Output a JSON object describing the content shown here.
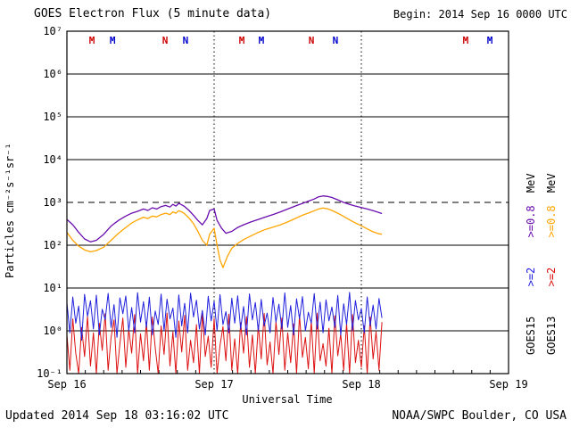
{
  "header": {
    "title": "GOES Electron Flux (5 minute data)",
    "begin_label": "Begin: 2014 Sep 16 0000 UTC"
  },
  "footer": {
    "updated": "Updated 2014 Sep 18 03:16:02 UTC",
    "source": "NOAA/SWPC Boulder, CO USA"
  },
  "legend": {
    "rows": [
      {
        "satellite": "GOES15",
        "ge2_label": ">=2",
        "ge2_color": "#2020dd",
        "ge08_label": ">=0.8",
        "ge08_color": "#6a0dad",
        "unit": "MeV"
      },
      {
        "satellite": "GOES13",
        "ge2_label": ">=2",
        "ge2_color": "#dd1111",
        "ge08_label": ">=0.8",
        "ge08_color": "#ffa500",
        "unit": "MeV"
      }
    ]
  },
  "chart_data": {
    "type": "line",
    "title": "GOES Electron Flux (5 minute data)",
    "xlabel": "Universal Time",
    "ylabel": "Particles cm⁻²s⁻¹sr⁻¹",
    "y_scale": "log",
    "ylim": [
      0.1,
      10000000
    ],
    "x_ticks": [
      {
        "label": "Sep 16",
        "day": 0
      },
      {
        "label": "Sep 17",
        "day": 1
      },
      {
        "label": "Sep 18",
        "day": 2
      },
      {
        "label": "Sep 19",
        "day": 3
      }
    ],
    "y_ticks": [
      {
        "label": "10⁷",
        "exp": 7
      },
      {
        "label": "10⁶",
        "exp": 6
      },
      {
        "label": "10⁵",
        "exp": 5
      },
      {
        "label": "10⁴",
        "exp": 4
      },
      {
        "label": "10³",
        "exp": 3
      },
      {
        "label": "10²",
        "exp": 2
      },
      {
        "label": "10¹",
        "exp": 1
      },
      {
        "label": "10⁰",
        "exp": 0
      },
      {
        "label": "10⁻¹",
        "exp": -1
      }
    ],
    "h_gridlines": [
      {
        "exp": 6,
        "style": "solid"
      },
      {
        "exp": 5,
        "style": "solid"
      },
      {
        "exp": 4,
        "style": "solid"
      },
      {
        "exp": 3,
        "style": "dashed"
      },
      {
        "exp": 2,
        "style": "solid"
      },
      {
        "exp": 1,
        "style": "solid"
      },
      {
        "exp": 0,
        "style": "solid"
      }
    ],
    "v_gridlines": [
      {
        "day": 1,
        "style": "dotted"
      },
      {
        "day": 2,
        "style": "dotted"
      }
    ],
    "event_markers": [
      {
        "label": "M",
        "color": "#cc0000",
        "day": 0.17
      },
      {
        "label": "M",
        "color": "#0000cc",
        "day": 0.31
      },
      {
        "label": "N",
        "color": "#cc0000",
        "day": 0.667
      },
      {
        "label": "N",
        "color": "#0000cc",
        "day": 0.806
      },
      {
        "label": "M",
        "color": "#cc0000",
        "day": 1.188
      },
      {
        "label": "M",
        "color": "#0000cc",
        "day": 1.321
      },
      {
        "label": "N",
        "color": "#cc0000",
        "day": 1.661
      },
      {
        "label": "N",
        "color": "#0000cc",
        "day": 1.824
      },
      {
        "label": "M",
        "color": "#cc0000",
        "day": 2.709
      },
      {
        "label": "M",
        "color": "#0000cc",
        "day": 2.873
      }
    ],
    "series": [
      {
        "name": "GOES13 >=2 MeV",
        "color": "#dd1111",
        "width": 1,
        "x0": 0,
        "dx": 0.02,
        "y": [
          0.8,
          0.12,
          1.9,
          0.3,
          0.1,
          1.2,
          0.25,
          2.2,
          0.15,
          0.9,
          0.1,
          1.5,
          0.35,
          2.5,
          0.12,
          0.7,
          1.8,
          0.1,
          0.5,
          2.0,
          0.14,
          1.1,
          0.3,
          2.4,
          0.1,
          0.85,
          0.2,
          1.6,
          0.12,
          2.1,
          0.4,
          0.1,
          1.3,
          0.28,
          2.6,
          0.15,
          0.95,
          0.1,
          1.7,
          0.32,
          2.3,
          0.12,
          0.6,
          0.18,
          1.4,
          0.1,
          2.7,
          0.25,
          0.75,
          0.14,
          1.95,
          0.1,
          0.45,
          1.25,
          0.2,
          2.45,
          0.12,
          0.65,
          0.1,
          1.55,
          0.3,
          2.15,
          0.14,
          0.8,
          0.1,
          1.35,
          0.22,
          2.55,
          0.16,
          0.55,
          0.1,
          1.65,
          0.28,
          2.0,
          0.12,
          0.9,
          0.18,
          1.45,
          0.1,
          2.35,
          0.24,
          0.7,
          0.13,
          1.75,
          0.1,
          2.6,
          0.2,
          0.5,
          0.15,
          1.15,
          0.1,
          2.25,
          0.26,
          0.85,
          0.12,
          1.5,
          0.1,
          2.4,
          0.18,
          0.6,
          0.14,
          1.3,
          0.1,
          2.1,
          0.22,
          0.95,
          0.12,
          1.6
        ]
      },
      {
        "name": "GOES15 >=2 MeV",
        "color": "#2020dd",
        "width": 1,
        "x0": 0,
        "dx": 0.02,
        "y": [
          4.5,
          0.9,
          6.2,
          1.5,
          3.8,
          0.6,
          7.1,
          2.2,
          5.0,
          1.1,
          6.8,
          0.8,
          3.2,
          1.8,
          7.5,
          1.2,
          4.1,
          0.7,
          5.9,
          2.5,
          6.5,
          1.0,
          3.5,
          0.9,
          7.8,
          1.6,
          4.8,
          1.2,
          6.1,
          0.8,
          2.9,
          1.4,
          7.2,
          1.0,
          5.5,
          1.9,
          3.4,
          0.7,
          6.9,
          1.3,
          4.4,
          0.9,
          7.6,
          2.1,
          5.2,
          1.1,
          3.0,
          0.8,
          6.4,
          1.7,
          4.9,
          1.0,
          7.0,
          1.4,
          2.8,
          0.9,
          5.8,
          1.5,
          6.6,
          1.1,
          3.7,
          0.8,
          7.3,
          1.8,
          4.6,
          1.0,
          5.4,
          1.3,
          2.6,
          0.9,
          6.0,
          1.6,
          4.2,
          1.1,
          7.7,
          1.2,
          3.9,
          0.8,
          5.6,
          1.9,
          6.3,
          1.0,
          2.7,
          1.5,
          7.4,
          1.1,
          4.7,
          0.9,
          5.3,
          1.7,
          3.6,
          1.2,
          6.7,
          0.8,
          4.3,
          1.4,
          7.9,
          1.0,
          5.1,
          1.8,
          3.3,
          0.9,
          6.2,
          1.3,
          4.0,
          1.1,
          5.7,
          2.0
        ]
      },
      {
        "name": "GOES13 >=0.8 MeV",
        "color": "#ffa500",
        "width": 1.3,
        "x": [
          0.0,
          0.04,
          0.08,
          0.12,
          0.16,
          0.2,
          0.25,
          0.3,
          0.35,
          0.4,
          0.44,
          0.48,
          0.52,
          0.55,
          0.58,
          0.61,
          0.64,
          0.67,
          0.7,
          0.72,
          0.74,
          0.76,
          0.78,
          0.8,
          0.83,
          0.86,
          0.89,
          0.92,
          0.95,
          0.97,
          1.0,
          1.02,
          1.04,
          1.06,
          1.09,
          1.12,
          1.16,
          1.2,
          1.25,
          1.3,
          1.35,
          1.4,
          1.45,
          1.5,
          1.55,
          1.6,
          1.65,
          1.68,
          1.71,
          1.74,
          1.77,
          1.8,
          1.84,
          1.88,
          1.92,
          1.96,
          2.0,
          2.04,
          2.08,
          2.12,
          2.14
        ],
        "y": [
          200,
          130,
          95,
          78,
          70,
          75,
          90,
          130,
          190,
          260,
          330,
          390,
          450,
          420,
          480,
          460,
          520,
          560,
          520,
          600,
          560,
          640,
          600,
          540,
          430,
          320,
          210,
          130,
          100,
          180,
          250,
          100,
          45,
          30,
          55,
          85,
          110,
          135,
          165,
          200,
          235,
          265,
          300,
          350,
          420,
          500,
          580,
          640,
          700,
          740,
          710,
          650,
          560,
          470,
          390,
          330,
          285,
          240,
          205,
          185,
          180
        ]
      },
      {
        "name": "GOES15 >=0.8 MeV",
        "color": "#6a0dad",
        "width": 1.3,
        "x": [
          0.0,
          0.04,
          0.08,
          0.12,
          0.16,
          0.2,
          0.25,
          0.3,
          0.35,
          0.4,
          0.44,
          0.48,
          0.52,
          0.55,
          0.58,
          0.61,
          0.64,
          0.67,
          0.7,
          0.72,
          0.74,
          0.76,
          0.78,
          0.8,
          0.83,
          0.86,
          0.89,
          0.92,
          0.95,
          0.97,
          1.0,
          1.02,
          1.05,
          1.08,
          1.12,
          1.16,
          1.2,
          1.25,
          1.3,
          1.35,
          1.4,
          1.45,
          1.5,
          1.55,
          1.6,
          1.65,
          1.68,
          1.71,
          1.74,
          1.77,
          1.8,
          1.84,
          1.88,
          1.92,
          1.96,
          2.0,
          2.04,
          2.08,
          2.12,
          2.14
        ],
        "y": [
          400,
          300,
          200,
          140,
          120,
          130,
          180,
          280,
          380,
          480,
          560,
          620,
          700,
          650,
          750,
          700,
          800,
          850,
          780,
          900,
          820,
          950,
          880,
          800,
          650,
          500,
          380,
          300,
          420,
          650,
          700,
          380,
          250,
          190,
          210,
          260,
          300,
          350,
          400,
          460,
          520,
          600,
          700,
          820,
          950,
          1100,
          1200,
          1350,
          1420,
          1380,
          1300,
          1150,
          1000,
          900,
          820,
          760,
          700,
          640,
          580,
          550
        ]
      }
    ]
  }
}
